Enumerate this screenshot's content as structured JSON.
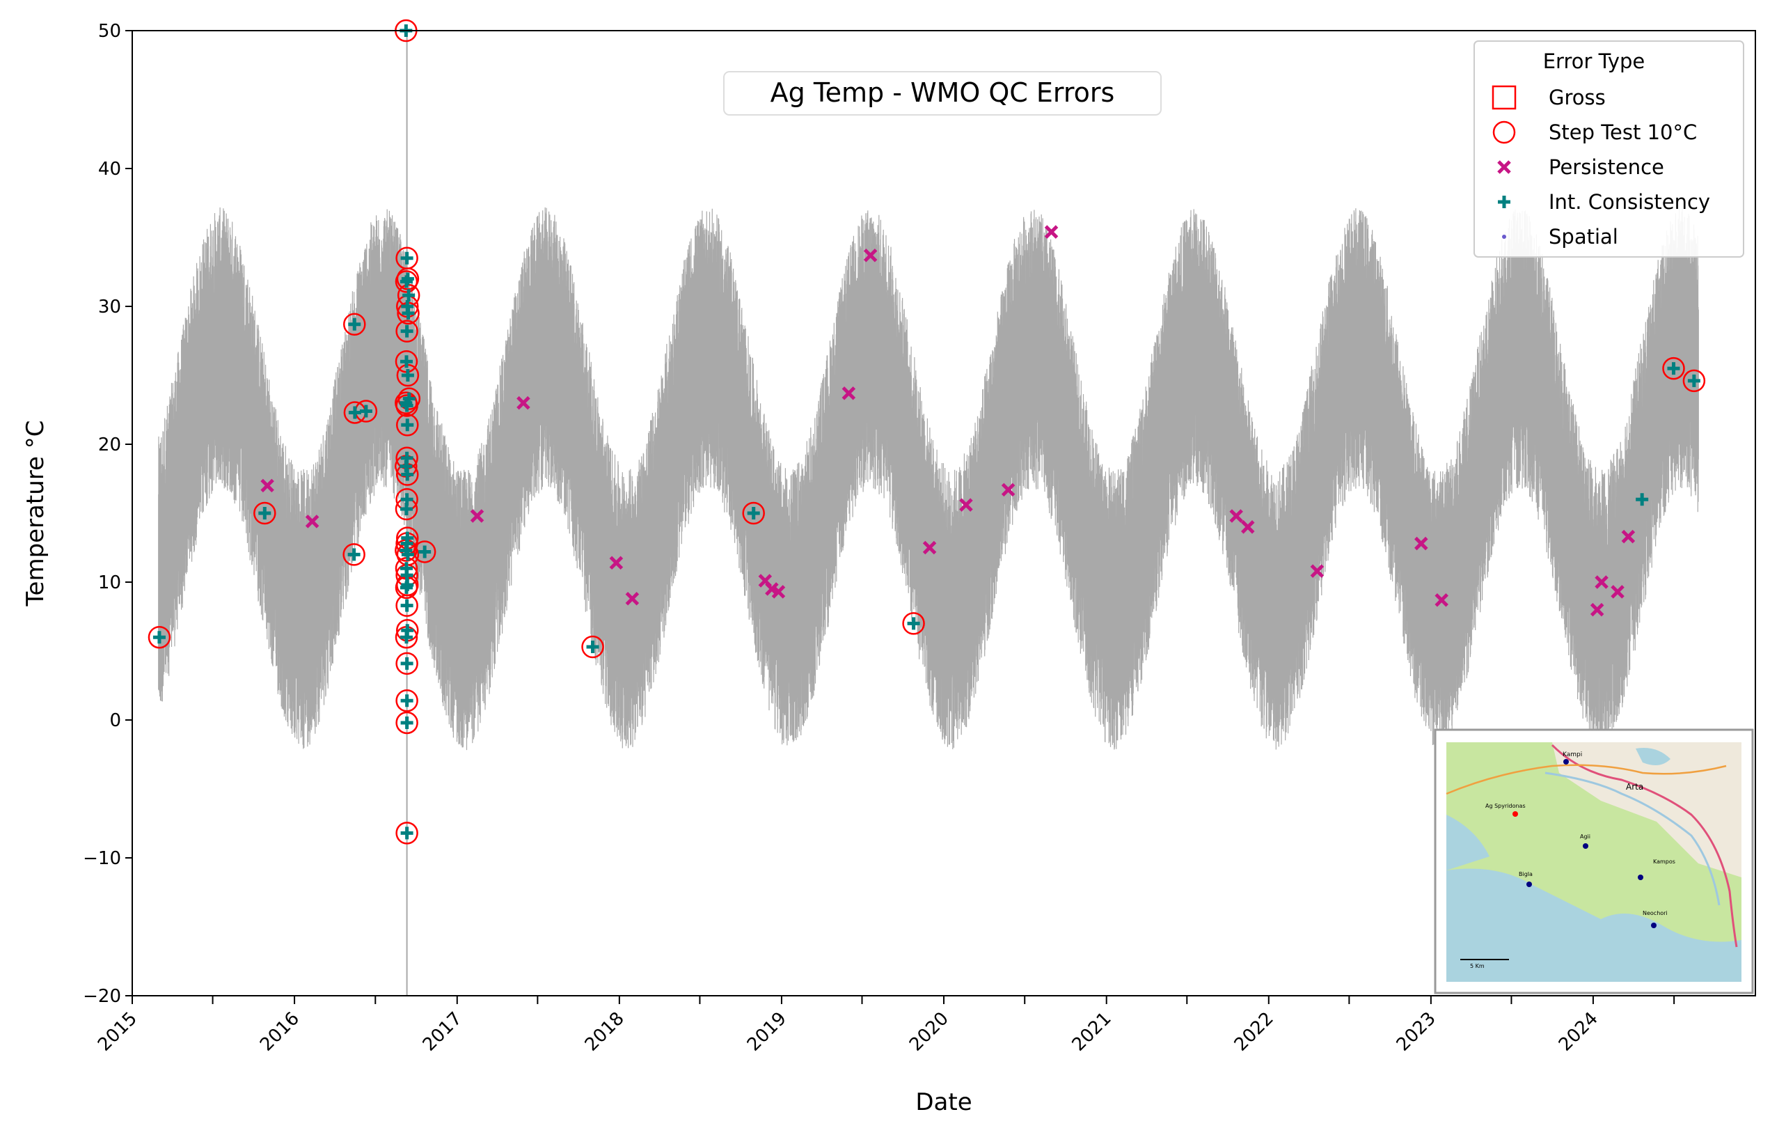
{
  "chart_data": {
    "type": "scatter",
    "title": "Ag Temp - WMO QC Errors",
    "xlabel": "Date",
    "ylabel": "Temperature °C",
    "xlim": [
      "2015-01-01",
      "2024-12-31"
    ],
    "ylim": [
      -20,
      50
    ],
    "grid": false,
    "x_tick_labels": [
      "2015",
      "2016",
      "2017",
      "2018",
      "2019",
      "2020",
      "2021",
      "2022",
      "2023",
      "2024"
    ],
    "y_tick_labels": [
      "−20",
      "−10",
      "0",
      "10",
      "20",
      "30",
      "40",
      "50"
    ],
    "y_ticks": [
      -20,
      -10,
      0,
      10,
      20,
      30,
      40,
      50
    ],
    "background_series": {
      "color": "#a9a9a9",
      "start": "2015-03-01",
      "end": "2024-08-25",
      "annual_mean_min": 8,
      "annual_mean_max": 27,
      "warmest_day_of_year": 200,
      "daily_swing": 12
    },
    "legend": {
      "title": "Error Type",
      "position": "upper right",
      "entries": [
        {
          "label": "Gross",
          "marker": "square-open",
          "color": "#ff0000"
        },
        {
          "label": "Step Test 10°C",
          "marker": "circle-open",
          "color": "#ff0000"
        },
        {
          "label": "Persistence",
          "marker": "x",
          "color": "#c71585"
        },
        {
          "label": "Int. Consistency",
          "marker": "plus",
          "color": "#008080"
        },
        {
          "label": "Spatial",
          "marker": "dot",
          "color": "#6a5acd"
        }
      ]
    },
    "series": [
      {
        "name": "Step Test 10°C",
        "marker": "circle-open",
        "color": "#ff0000",
        "points": [
          [
            "2015-03-03",
            6
          ],
          [
            "2015-10-26",
            15
          ],
          [
            "2016-05-15",
            28.7
          ],
          [
            "2016-05-16",
            22.3
          ],
          [
            "2016-05-14",
            12
          ],
          [
            "2016-06-10",
            22.4
          ],
          [
            "2016-09-08",
            50
          ],
          [
            "2016-09-10",
            33.5
          ],
          [
            "2016-09-12",
            32
          ],
          [
            "2016-09-09",
            31.8
          ],
          [
            "2016-09-14",
            30.8
          ],
          [
            "2016-09-11",
            30
          ],
          [
            "2016-09-13",
            29.5
          ],
          [
            "2016-09-10",
            28.2
          ],
          [
            "2016-09-09",
            26
          ],
          [
            "2016-09-12",
            25
          ],
          [
            "2016-09-15",
            23.3
          ],
          [
            "2016-09-08",
            23
          ],
          [
            "2016-09-10",
            22.8
          ],
          [
            "2016-09-11",
            21.4
          ],
          [
            "2016-09-10",
            19
          ],
          [
            "2016-09-08",
            18.4
          ],
          [
            "2016-09-11",
            17.8
          ],
          [
            "2016-09-10",
            16
          ],
          [
            "2016-09-09",
            15.3
          ],
          [
            "2016-09-11",
            13.2
          ],
          [
            "2016-09-10",
            12.8
          ],
          [
            "2016-09-08",
            12.3
          ],
          [
            "2016-09-12",
            12
          ],
          [
            "2016-09-09",
            11
          ],
          [
            "2016-09-10",
            10.5
          ],
          [
            "2016-09-11",
            9.8
          ],
          [
            "2016-09-09",
            9.6
          ],
          [
            "2016-09-10",
            8.3
          ],
          [
            "2016-09-11",
            6.5
          ],
          [
            "2016-09-09",
            6
          ],
          [
            "2016-09-10",
            4.1
          ],
          [
            "2016-09-10",
            1.4
          ],
          [
            "2016-09-10",
            -0.2
          ],
          [
            "2016-09-10",
            -8.2
          ],
          [
            "2016-10-20",
            12.2
          ],
          [
            "2017-11-02",
            5.3
          ],
          [
            "2018-10-30",
            15
          ],
          [
            "2019-10-25",
            7
          ],
          [
            "2024-06-30",
            25.5
          ],
          [
            "2024-08-15",
            24.6
          ]
        ]
      },
      {
        "name": "Int. Consistency",
        "marker": "plus",
        "color": "#008080",
        "points": [
          [
            "2015-03-03",
            6
          ],
          [
            "2015-10-26",
            15
          ],
          [
            "2016-05-15",
            28.7
          ],
          [
            "2016-05-16",
            22.3
          ],
          [
            "2016-05-14",
            12
          ],
          [
            "2016-06-10",
            22.4
          ],
          [
            "2016-09-08",
            50
          ],
          [
            "2016-09-10",
            33.5
          ],
          [
            "2016-09-12",
            32
          ],
          [
            "2016-09-09",
            31.8
          ],
          [
            "2016-09-14",
            30.8
          ],
          [
            "2016-09-11",
            30
          ],
          [
            "2016-09-13",
            29.5
          ],
          [
            "2016-09-10",
            28.2
          ],
          [
            "2016-09-09",
            26
          ],
          [
            "2016-09-12",
            25
          ],
          [
            "2016-09-15",
            23.3
          ],
          [
            "2016-09-08",
            23
          ],
          [
            "2016-09-10",
            22.8
          ],
          [
            "2016-09-11",
            21.4
          ],
          [
            "2016-09-10",
            19
          ],
          [
            "2016-09-08",
            18.4
          ],
          [
            "2016-09-11",
            17.8
          ],
          [
            "2016-09-10",
            16
          ],
          [
            "2016-09-09",
            15.3
          ],
          [
            "2016-09-11",
            13.2
          ],
          [
            "2016-09-10",
            12.8
          ],
          [
            "2016-09-08",
            12.3
          ],
          [
            "2016-09-12",
            12
          ],
          [
            "2016-09-09",
            11
          ],
          [
            "2016-09-10",
            10.5
          ],
          [
            "2016-09-11",
            9.8
          ],
          [
            "2016-09-09",
            9.6
          ],
          [
            "2016-09-10",
            8.3
          ],
          [
            "2016-09-11",
            6.5
          ],
          [
            "2016-09-09",
            6
          ],
          [
            "2016-09-10",
            4.1
          ],
          [
            "2016-09-10",
            1.4
          ],
          [
            "2016-09-10",
            -0.2
          ],
          [
            "2016-09-10",
            -8.2
          ],
          [
            "2016-10-20",
            12.2
          ],
          [
            "2017-11-02",
            5.3
          ],
          [
            "2018-10-30",
            15
          ],
          [
            "2019-10-25",
            7
          ],
          [
            "2024-04-20",
            16
          ],
          [
            "2024-06-30",
            25.5
          ],
          [
            "2024-08-15",
            24.6
          ]
        ]
      },
      {
        "name": "Persistence",
        "marker": "x",
        "color": "#c71585",
        "points": [
          [
            "2015-11-01",
            17
          ],
          [
            "2016-02-10",
            14.4
          ],
          [
            "2017-02-15",
            14.8
          ],
          [
            "2017-05-30",
            23
          ],
          [
            "2017-12-25",
            11.4
          ],
          [
            "2018-01-30",
            8.8
          ],
          [
            "2018-11-25",
            10.1
          ],
          [
            "2018-12-10",
            9.5
          ],
          [
            "2018-12-25",
            9.3
          ],
          [
            "2019-06-01",
            23.7
          ],
          [
            "2019-07-20",
            33.7
          ],
          [
            "2019-11-30",
            12.5
          ],
          [
            "2020-02-20",
            15.6
          ],
          [
            "2020-05-25",
            16.7
          ],
          [
            "2020-08-30",
            35.4
          ],
          [
            "2021-10-20",
            14.8
          ],
          [
            "2021-11-15",
            14
          ],
          [
            "2022-04-20",
            10.8
          ],
          [
            "2022-12-10",
            12.8
          ],
          [
            "2023-01-25",
            8.7
          ],
          [
            "2024-01-10",
            8
          ],
          [
            "2024-01-20",
            10
          ],
          [
            "2024-02-25",
            9.3
          ],
          [
            "2024-03-20",
            13.3
          ]
        ]
      },
      {
        "name": "Gross",
        "marker": "square-open",
        "color": "#ff0000",
        "points": []
      },
      {
        "name": "Spatial",
        "marker": "dot",
        "color": "#6a5acd",
        "points": []
      }
    ],
    "inset_map": {
      "labels": [
        "Kampi",
        "Arta",
        "Ag Spyridonas",
        "Agii",
        "Bigla",
        "Kampos",
        "Neochori",
        "5 Km"
      ],
      "station_color": "#000080",
      "highlight_color": "#ff0000",
      "water_color": "#aad3df",
      "land_color": "#c8e6a0"
    }
  }
}
